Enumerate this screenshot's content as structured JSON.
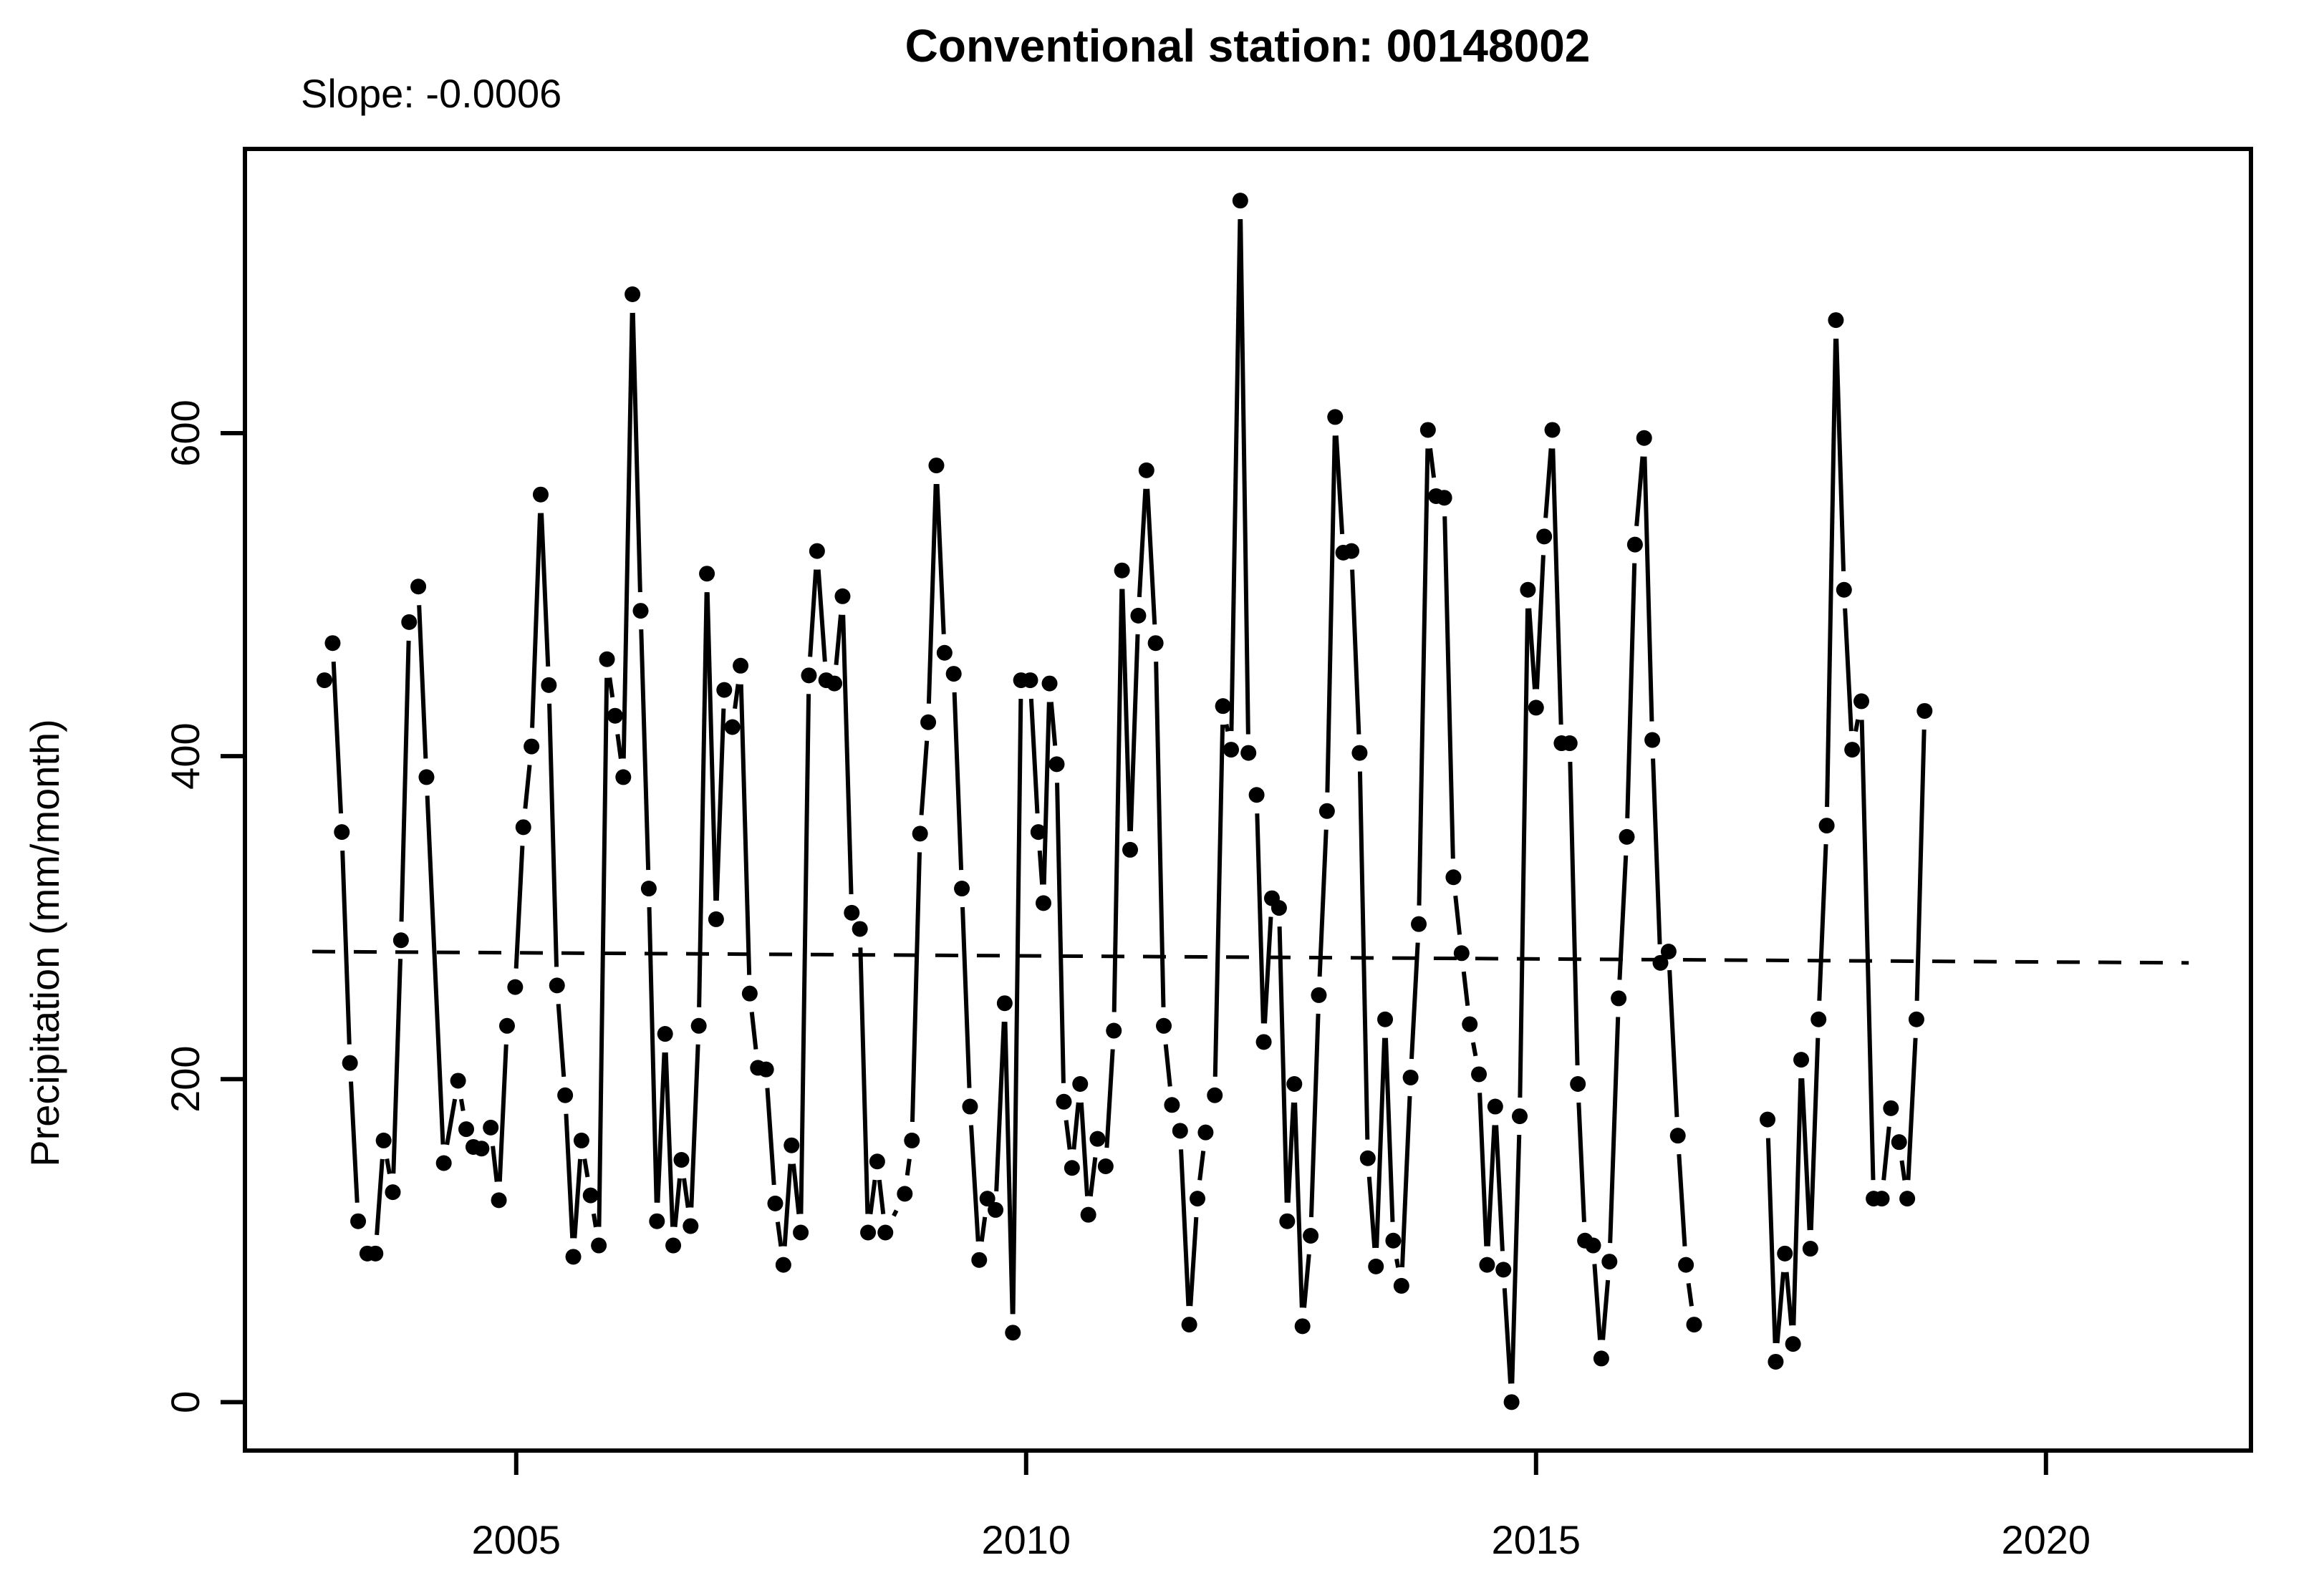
{
  "page": {
    "background": "#ffffff",
    "foreground": "#000000"
  },
  "header": {
    "title": "Conventional station: 00148002",
    "slope_label": "Slope: -0.0006"
  },
  "chart_data": {
    "type": "scatter",
    "title": "Conventional station: 00148002",
    "annotation": "Slope: -0.0006",
    "xlabel": "",
    "ylabel": "Precipitation (mm/month)",
    "x_ticks": [
      2005,
      2010,
      2015,
      2020
    ],
    "y_ticks": [
      0,
      200,
      400,
      600
    ],
    "xlim": [
      2002.34,
      2022.01
    ],
    "ylim": [
      -30,
      776
    ],
    "grid": false,
    "legend": null,
    "marker": "filled-circle",
    "marker_color": "#000000",
    "line_color": "#000000",
    "line_style": "between-points-with-gaps",
    "trend_line": {
      "x": [
        2003.0,
        2021.4
      ],
      "y": [
        279,
        272
      ],
      "style": "dashed",
      "color": "#000000"
    },
    "gap_threshold_years": 0.2,
    "points": [
      [
        2003.12,
        447
      ],
      [
        2003.2,
        470
      ],
      [
        2003.29,
        353
      ],
      [
        2003.37,
        210
      ],
      [
        2003.45,
        112
      ],
      [
        2003.54,
        92
      ],
      [
        2003.62,
        92
      ],
      [
        2003.7,
        162
      ],
      [
        2003.79,
        130
      ],
      [
        2003.87,
        286
      ],
      [
        2003.95,
        483
      ],
      [
        2004.04,
        505
      ],
      [
        2004.12,
        387
      ],
      [
        2004.29,
        148
      ],
      [
        2004.43,
        199
      ],
      [
        2004.51,
        169
      ],
      [
        2004.58,
        158
      ],
      [
        2004.66,
        157
      ],
      [
        2004.75,
        170
      ],
      [
        2004.83,
        125
      ],
      [
        2004.91,
        233
      ],
      [
        2004.99,
        257
      ],
      [
        2005.07,
        356
      ],
      [
        2005.15,
        406
      ],
      [
        2005.24,
        562
      ],
      [
        2005.32,
        444
      ],
      [
        2005.4,
        258
      ],
      [
        2005.48,
        190
      ],
      [
        2005.56,
        90
      ],
      [
        2005.64,
        162
      ],
      [
        2005.73,
        128
      ],
      [
        2005.81,
        97
      ],
      [
        2005.89,
        460
      ],
      [
        2005.97,
        425
      ],
      [
        2006.05,
        387
      ],
      [
        2006.14,
        686
      ],
      [
        2006.22,
        490
      ],
      [
        2006.3,
        318
      ],
      [
        2006.38,
        112
      ],
      [
        2006.46,
        228
      ],
      [
        2006.54,
        97
      ],
      [
        2006.62,
        150
      ],
      [
        2006.71,
        109
      ],
      [
        2006.79,
        233
      ],
      [
        2006.87,
        513
      ],
      [
        2006.96,
        299
      ],
      [
        2007.04,
        441
      ],
      [
        2007.12,
        418
      ],
      [
        2007.2,
        456
      ],
      [
        2007.29,
        253
      ],
      [
        2007.37,
        207
      ],
      [
        2007.45,
        206
      ],
      [
        2007.54,
        123
      ],
      [
        2007.62,
        85
      ],
      [
        2007.7,
        159
      ],
      [
        2007.79,
        105
      ],
      [
        2007.87,
        450
      ],
      [
        2007.95,
        527
      ],
      [
        2008.04,
        447
      ],
      [
        2008.12,
        445
      ],
      [
        2008.2,
        499
      ],
      [
        2008.29,
        303
      ],
      [
        2008.37,
        293
      ],
      [
        2008.45,
        105
      ],
      [
        2008.54,
        149
      ],
      [
        2008.62,
        105
      ],
      [
        2008.81,
        129
      ],
      [
        2008.88,
        162
      ],
      [
        2008.96,
        352
      ],
      [
        2009.04,
        421
      ],
      [
        2009.12,
        580
      ],
      [
        2009.2,
        464
      ],
      [
        2009.29,
        451
      ],
      [
        2009.37,
        318
      ],
      [
        2009.45,
        183
      ],
      [
        2009.54,
        88
      ],
      [
        2009.62,
        126
      ],
      [
        2009.7,
        119
      ],
      [
        2009.79,
        247
      ],
      [
        2009.87,
        43
      ],
      [
        2009.95,
        447
      ],
      [
        2010.04,
        447
      ],
      [
        2010.12,
        353
      ],
      [
        2010.17,
        309
      ],
      [
        2010.23,
        445
      ],
      [
        2010.3,
        395
      ],
      [
        2010.37,
        186
      ],
      [
        2010.45,
        145
      ],
      [
        2010.53,
        197
      ],
      [
        2010.61,
        116
      ],
      [
        2010.7,
        163
      ],
      [
        2010.78,
        146
      ],
      [
        2010.86,
        230
      ],
      [
        2010.94,
        515
      ],
      [
        2011.02,
        342
      ],
      [
        2011.1,
        487
      ],
      [
        2011.18,
        577
      ],
      [
        2011.27,
        470
      ],
      [
        2011.35,
        233
      ],
      [
        2011.43,
        184
      ],
      [
        2011.51,
        168
      ],
      [
        2011.6,
        48
      ],
      [
        2011.68,
        126
      ],
      [
        2011.76,
        167
      ],
      [
        2011.85,
        190
      ],
      [
        2011.93,
        431
      ],
      [
        2012.01,
        404
      ],
      [
        2012.1,
        744
      ],
      [
        2012.18,
        402
      ],
      [
        2012.26,
        376
      ],
      [
        2012.33,
        223
      ],
      [
        2012.41,
        312
      ],
      [
        2012.48,
        306
      ],
      [
        2012.56,
        112
      ],
      [
        2012.63,
        197
      ],
      [
        2012.71,
        47
      ],
      [
        2012.79,
        103
      ],
      [
        2012.87,
        252
      ],
      [
        2012.95,
        366
      ],
      [
        2013.03,
        610
      ],
      [
        2013.11,
        526
      ],
      [
        2013.19,
        527
      ],
      [
        2013.27,
        402
      ],
      [
        2013.35,
        151
      ],
      [
        2013.43,
        84
      ],
      [
        2013.52,
        237
      ],
      [
        2013.6,
        100
      ],
      [
        2013.68,
        72
      ],
      [
        2013.77,
        201
      ],
      [
        2013.85,
        296
      ],
      [
        2013.94,
        602
      ],
      [
        2014.02,
        561
      ],
      [
        2014.1,
        560
      ],
      [
        2014.19,
        325
      ],
      [
        2014.27,
        278
      ],
      [
        2014.35,
        234
      ],
      [
        2014.44,
        203
      ],
      [
        2014.52,
        85
      ],
      [
        2014.6,
        183
      ],
      [
        2014.68,
        82
      ],
      [
        2014.76,
        0
      ],
      [
        2014.84,
        177
      ],
      [
        2014.92,
        503
      ],
      [
        2015.0,
        430
      ],
      [
        2015.08,
        536
      ],
      [
        2015.16,
        602
      ],
      [
        2015.25,
        408
      ],
      [
        2015.33,
        408
      ],
      [
        2015.41,
        197
      ],
      [
        2015.48,
        100
      ],
      [
        2015.56,
        97
      ],
      [
        2015.64,
        27
      ],
      [
        2015.72,
        87
      ],
      [
        2015.81,
        250
      ],
      [
        2015.89,
        350
      ],
      [
        2015.97,
        531
      ],
      [
        2016.06,
        597
      ],
      [
        2016.14,
        410
      ],
      [
        2016.22,
        272
      ],
      [
        2016.3,
        279
      ],
      [
        2016.39,
        165
      ],
      [
        2016.47,
        85
      ],
      [
        2016.55,
        48
      ],
      [
        2017.27,
        175
      ],
      [
        2017.35,
        25
      ],
      [
        2017.44,
        92
      ],
      [
        2017.52,
        36
      ],
      [
        2017.6,
        212
      ],
      [
        2017.69,
        95
      ],
      [
        2017.77,
        237
      ],
      [
        2017.85,
        357
      ],
      [
        2017.94,
        670
      ],
      [
        2018.02,
        503
      ],
      [
        2018.1,
        404
      ],
      [
        2018.19,
        434
      ],
      [
        2018.31,
        126
      ],
      [
        2018.39,
        126
      ],
      [
        2018.48,
        182
      ],
      [
        2018.56,
        161
      ],
      [
        2018.64,
        126
      ],
      [
        2018.73,
        237
      ],
      [
        2018.81,
        428
      ]
    ]
  }
}
